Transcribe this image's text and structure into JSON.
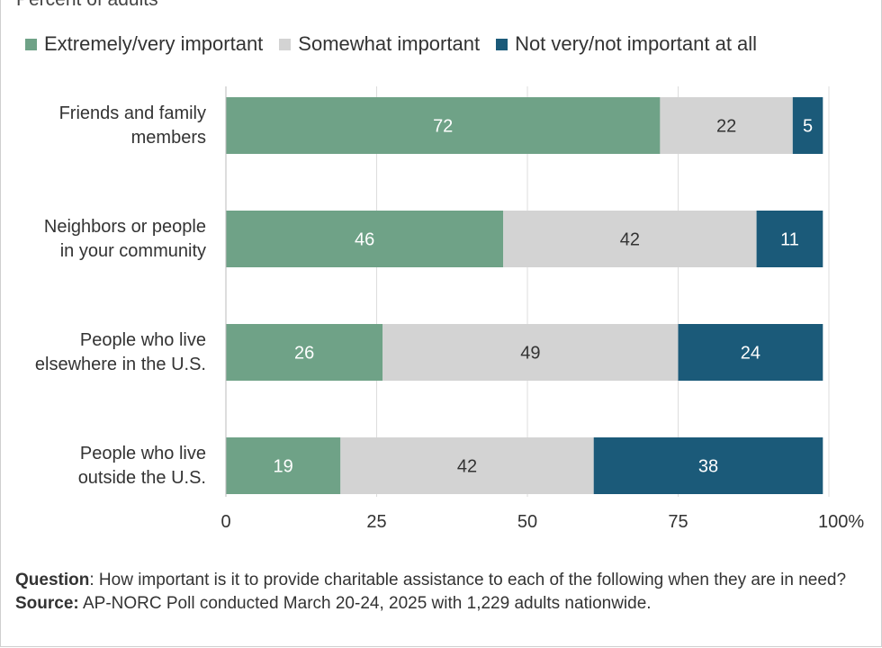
{
  "subtitle": "Percent of adults",
  "legend": [
    {
      "label": "Extremely/very important",
      "color": "#6fa287"
    },
    {
      "label": "Somewhat important",
      "color": "#d3d3d3"
    },
    {
      "label": "Not very/not important at all",
      "color": "#1b5a79"
    }
  ],
  "footer": {
    "question_label": "Question",
    "question_text": ": How important is it to provide charitable assistance to each of the following when they are in need?",
    "source_label": "Source:",
    "source_text": " AP-NORC Poll conducted March 20-24, 2025 with 1,229 adults nationwide."
  },
  "chart_data": {
    "type": "bar",
    "orientation": "horizontal",
    "stacked": true,
    "categories": [
      [
        "Friends and family",
        "members"
      ],
      [
        "Neighbors or people",
        "in your community"
      ],
      [
        "People who live",
        "elsewhere in the U.S."
      ],
      [
        "People who live",
        "outside the U.S."
      ]
    ],
    "series": [
      {
        "name": "Extremely/very important",
        "values": [
          72,
          46,
          26,
          19
        ],
        "color": "#6fa287",
        "label_color": "#ffffff"
      },
      {
        "name": "Somewhat important",
        "values": [
          22,
          42,
          49,
          42
        ],
        "color": "#d3d3d3",
        "label_color": "#333333"
      },
      {
        "name": "Not very/not important at all",
        "values": [
          5,
          11,
          24,
          38
        ],
        "color": "#1b5a79",
        "label_color": "#ffffff"
      }
    ],
    "xlim": [
      0,
      100
    ],
    "xticks": [
      "0",
      "25",
      "50",
      "75",
      "100%"
    ],
    "tick_values": [
      0,
      25,
      50,
      75,
      100
    ],
    "grid": true
  }
}
